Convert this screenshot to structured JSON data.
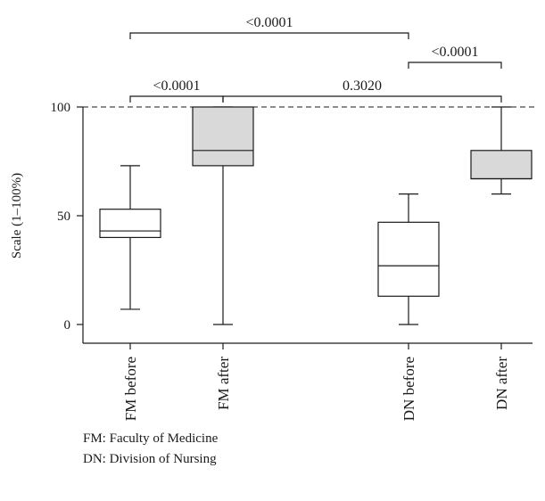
{
  "chart_data": {
    "type": "box",
    "ylabel": "Scale (1–100%)",
    "ylim": [
      0,
      100
    ],
    "yticks": [
      0,
      50,
      100
    ],
    "reference_line": 100,
    "categories": [
      "FM before",
      "FM after",
      "DN before",
      "DN after"
    ],
    "boxes": [
      {
        "label": "FM before",
        "min": 7,
        "q1": 40,
        "median": 43,
        "q3": 53,
        "max": 73,
        "fill": "#ffffff"
      },
      {
        "label": "FM after",
        "min": 0,
        "q1": 73,
        "median": 80,
        "q3": 100,
        "max": 100,
        "fill": "#d9d9d9"
      },
      {
        "label": "DN before",
        "min": 0,
        "q1": 13,
        "median": 27,
        "q3": 47,
        "max": 60,
        "fill": "#ffffff"
      },
      {
        "label": "DN after",
        "min": 60,
        "q1": 67,
        "median": 67,
        "q3": 80,
        "max": 100,
        "fill": "#d9d9d9"
      }
    ],
    "comparisons": [
      {
        "from": "FM before",
        "to": "FM after",
        "p": "<0.0001"
      },
      {
        "from": "DN before",
        "to": "DN after",
        "p": "<0.0001"
      },
      {
        "from": "FM before",
        "to": "DN before",
        "p": "<0.0001"
      },
      {
        "from": "FM after",
        "to": "DN after",
        "p": "0.3020"
      }
    ]
  },
  "footnotes": {
    "fm": "FM: Faculty of Medicine",
    "dn": "DN: Division of Nursing"
  }
}
